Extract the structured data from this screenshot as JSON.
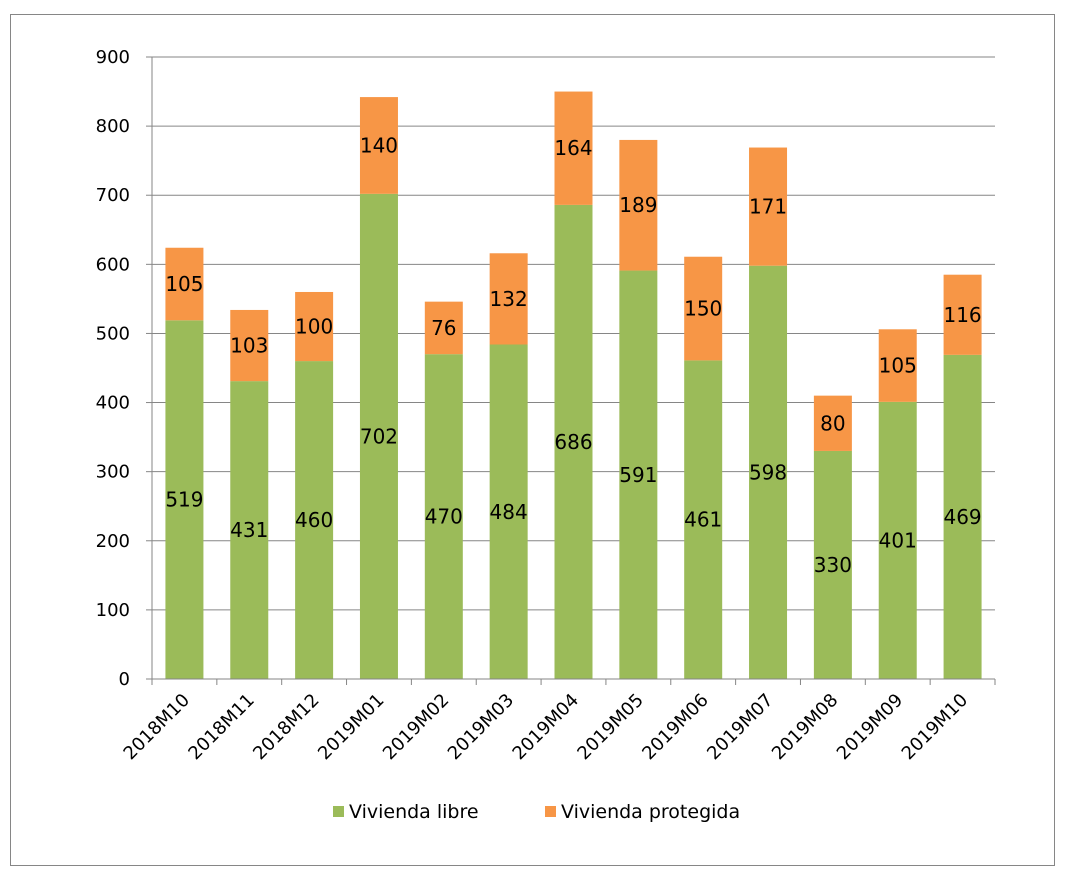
{
  "chart_data": {
    "type": "bar",
    "stacked": true,
    "title": "",
    "xlabel": "",
    "ylabel": "",
    "categories": [
      "2018M10",
      "2018M11",
      "2018M12",
      "2019M01",
      "2019M02",
      "2019M03",
      "2019M04",
      "2019M05",
      "2019M06",
      "2019M07",
      "2019M08",
      "2019M09",
      "2019M10"
    ],
    "series": [
      {
        "name": "Vivienda libre",
        "color": "#9BBB59",
        "values": [
          519,
          431,
          460,
          702,
          470,
          484,
          686,
          591,
          461,
          598,
          330,
          401,
          469
        ]
      },
      {
        "name": "Vivienda protegida",
        "color": "#F79646",
        "values": [
          105,
          103,
          100,
          140,
          76,
          132,
          164,
          189,
          150,
          171,
          80,
          105,
          116
        ]
      }
    ],
    "ylim": [
      0,
      900
    ],
    "yticks": [
      0,
      100,
      200,
      300,
      400,
      500,
      600,
      700,
      800,
      900
    ],
    "grid": true,
    "data_labels": true,
    "legend": "bottom"
  }
}
